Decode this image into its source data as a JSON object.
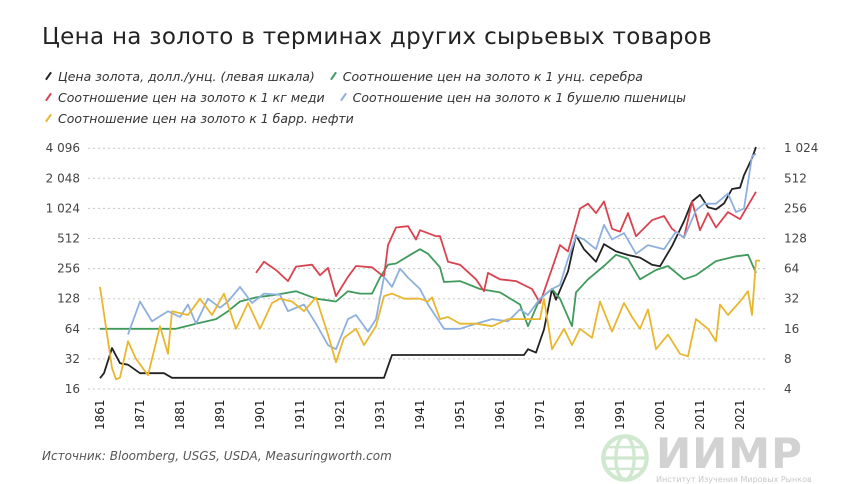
{
  "title": "Цена на золото в терминах других сырьевых товаров",
  "source": "Источник: Bloomberg, USGS, USDA, Measuringworth.com",
  "logo": {
    "text": "ИИМР",
    "subtitle": "Институт Изучения Мировых Рынков"
  },
  "chart_data": {
    "type": "line",
    "y_scale": "log2",
    "grid": true,
    "legend_placement": "top",
    "xlim": [
      1861,
      2025
    ],
    "x_ticks": [
      "1861",
      "1871",
      "1881",
      "1891",
      "1901",
      "1911",
      "1921",
      "1931",
      "1941",
      "1951",
      "1961",
      "1971",
      "1981",
      "1991",
      "2001",
      "2011",
      "2021"
    ],
    "y_left_ticks": [
      "4 096",
      "2 048",
      "1 024",
      "512",
      "256",
      "128",
      "64",
      "32",
      "16"
    ],
    "y_left_values": [
      4096,
      2048,
      1024,
      512,
      256,
      128,
      64,
      32,
      16
    ],
    "y_right_ticks": [
      "1 024",
      "512",
      "256",
      "128",
      "64",
      "32",
      "16",
      "8",
      "4"
    ],
    "y_right_values": [
      1024,
      512,
      256,
      128,
      64,
      32,
      16,
      8,
      4
    ],
    "series": [
      {
        "name": "Цена золота, долл./унц. (левая шкала)",
        "axis": "left",
        "color": "#222222",
        "points": [
          [
            1861,
            20.5
          ],
          [
            1862,
            23
          ],
          [
            1864,
            41
          ],
          [
            1866,
            29
          ],
          [
            1868,
            28
          ],
          [
            1871,
            23
          ],
          [
            1874,
            23
          ],
          [
            1877,
            23
          ],
          [
            1879,
            20.7
          ],
          [
            1932,
            20.7
          ],
          [
            1933,
            27
          ],
          [
            1934,
            35
          ],
          [
            1967,
            35
          ],
          [
            1968,
            40
          ],
          [
            1970,
            37
          ],
          [
            1972,
            63
          ],
          [
            1974,
            160
          ],
          [
            1975,
            125
          ],
          [
            1978,
            240
          ],
          [
            1980,
            550
          ],
          [
            1982,
            400
          ],
          [
            1985,
            300
          ],
          [
            1987,
            450
          ],
          [
            1990,
            380
          ],
          [
            1993,
            350
          ],
          [
            1996,
            330
          ],
          [
            1999,
            280
          ],
          [
            2001,
            270
          ],
          [
            2004,
            430
          ],
          [
            2007,
            760
          ],
          [
            2009,
            1200
          ],
          [
            2011,
            1400
          ],
          [
            2013,
            1050
          ],
          [
            2015,
            1000
          ],
          [
            2017,
            1150
          ],
          [
            2019,
            1600
          ],
          [
            2021,
            1650
          ],
          [
            2022,
            2200
          ],
          [
            2024,
            3250
          ],
          [
            2025,
            4200
          ]
        ]
      },
      {
        "name": "Соотношение цен на золото к 1 унц. серебра",
        "axis": "right",
        "color": "#3f9a5c",
        "points": [
          [
            1861,
            16
          ],
          [
            1873,
            16
          ],
          [
            1880,
            16
          ],
          [
            1885,
            18
          ],
          [
            1890,
            20
          ],
          [
            1893,
            24
          ],
          [
            1896,
            30
          ],
          [
            1900,
            33
          ],
          [
            1905,
            35
          ],
          [
            1910,
            38
          ],
          [
            1915,
            32
          ],
          [
            1920,
            30
          ],
          [
            1923,
            38
          ],
          [
            1926,
            36
          ],
          [
            1929,
            36
          ],
          [
            1931,
            52
          ],
          [
            1933,
            70
          ],
          [
            1935,
            72
          ],
          [
            1939,
            90
          ],
          [
            1941,
            100
          ],
          [
            1943,
            90
          ],
          [
            1946,
            66
          ],
          [
            1947,
            47
          ],
          [
            1951,
            48
          ],
          [
            1956,
            40
          ],
          [
            1961,
            37
          ],
          [
            1966,
            28
          ],
          [
            1968,
            17
          ],
          [
            1971,
            32
          ],
          [
            1974,
            40
          ],
          [
            1976,
            32
          ],
          [
            1979,
            17
          ],
          [
            1980,
            37
          ],
          [
            1983,
            50
          ],
          [
            1987,
            68
          ],
          [
            1990,
            88
          ],
          [
            1993,
            80
          ],
          [
            1996,
            50
          ],
          [
            2000,
            62
          ],
          [
            2003,
            68
          ],
          [
            2007,
            50
          ],
          [
            2010,
            55
          ],
          [
            2015,
            76
          ],
          [
            2020,
            85
          ],
          [
            2023,
            88
          ],
          [
            2025,
            58
          ]
        ]
      },
      {
        "name": "Соотношение цен на золото к 1 кг меди",
        "axis": "right",
        "color": "#d9434f",
        "points": [
          [
            1900,
            58
          ],
          [
            1902,
            75
          ],
          [
            1905,
            62
          ],
          [
            1908,
            48
          ],
          [
            1910,
            67
          ],
          [
            1914,
            70
          ],
          [
            1916,
            55
          ],
          [
            1918,
            65
          ],
          [
            1920,
            34
          ],
          [
            1923,
            53
          ],
          [
            1925,
            68
          ],
          [
            1929,
            66
          ],
          [
            1932,
            53
          ],
          [
            1933,
            110
          ],
          [
            1935,
            165
          ],
          [
            1938,
            170
          ],
          [
            1940,
            125
          ],
          [
            1941,
            155
          ],
          [
            1945,
            135
          ],
          [
            1946,
            135
          ],
          [
            1948,
            75
          ],
          [
            1951,
            70
          ],
          [
            1955,
            50
          ],
          [
            1957,
            38
          ],
          [
            1958,
            58
          ],
          [
            1961,
            50
          ],
          [
            1965,
            48
          ],
          [
            1969,
            40
          ],
          [
            1971,
            29
          ],
          [
            1974,
            64
          ],
          [
            1976,
            110
          ],
          [
            1978,
            95
          ],
          [
            1981,
            255
          ],
          [
            1983,
            285
          ],
          [
            1985,
            230
          ],
          [
            1987,
            300
          ],
          [
            1989,
            160
          ],
          [
            1991,
            150
          ],
          [
            1993,
            230
          ],
          [
            1995,
            135
          ],
          [
            1999,
            195
          ],
          [
            2002,
            215
          ],
          [
            2004,
            160
          ],
          [
            2007,
            130
          ],
          [
            2009,
            300
          ],
          [
            2011,
            155
          ],
          [
            2013,
            230
          ],
          [
            2015,
            165
          ],
          [
            2018,
            235
          ],
          [
            2021,
            200
          ],
          [
            2025,
            375
          ]
        ]
      },
      {
        "name": "Соотношение цен на золото к 1 бушелю пшеницы",
        "axis": "right",
        "color": "#8eb0df",
        "points": [
          [
            1868,
            14
          ],
          [
            1871,
            30
          ],
          [
            1874,
            19
          ],
          [
            1878,
            24
          ],
          [
            1881,
            21
          ],
          [
            1883,
            28
          ],
          [
            1885,
            18
          ],
          [
            1888,
            32
          ],
          [
            1891,
            26
          ],
          [
            1893,
            30
          ],
          [
            1896,
            42
          ],
          [
            1899,
            29
          ],
          [
            1902,
            36
          ],
          [
            1906,
            35
          ],
          [
            1908,
            24
          ],
          [
            1912,
            28
          ],
          [
            1915,
            18
          ],
          [
            1918,
            11
          ],
          [
            1920,
            10
          ],
          [
            1923,
            20
          ],
          [
            1925,
            22
          ],
          [
            1928,
            15
          ],
          [
            1930,
            20
          ],
          [
            1932,
            53
          ],
          [
            1934,
            42
          ],
          [
            1936,
            64
          ],
          [
            1938,
            52
          ],
          [
            1941,
            40
          ],
          [
            1943,
            28
          ],
          [
            1947,
            16
          ],
          [
            1951,
            16
          ],
          [
            1955,
            18
          ],
          [
            1959,
            20
          ],
          [
            1963,
            19
          ],
          [
            1966,
            25
          ],
          [
            1968,
            22
          ],
          [
            1971,
            32
          ],
          [
            1974,
            40
          ],
          [
            1976,
            44
          ],
          [
            1978,
            80
          ],
          [
            1980,
            135
          ],
          [
            1982,
            125
          ],
          [
            1985,
            100
          ],
          [
            1987,
            175
          ],
          [
            1989,
            125
          ],
          [
            1992,
            145
          ],
          [
            1995,
            90
          ],
          [
            1998,
            110
          ],
          [
            2002,
            100
          ],
          [
            2005,
            150
          ],
          [
            2007,
            130
          ],
          [
            2010,
            245
          ],
          [
            2012,
            285
          ],
          [
            2015,
            285
          ],
          [
            2018,
            360
          ],
          [
            2020,
            235
          ],
          [
            2022,
            255
          ],
          [
            2024,
            850
          ],
          [
            2025,
            900
          ]
        ]
      },
      {
        "name": "Соотношение цен на золото к 1 барр. нефти",
        "axis": "right",
        "color": "#e8b62f",
        "points": [
          [
            1861,
            42
          ],
          [
            1864,
            6.5
          ],
          [
            1865,
            5
          ],
          [
            1866,
            5.2
          ],
          [
            1868,
            12
          ],
          [
            1870,
            8
          ],
          [
            1873,
            5.5
          ],
          [
            1876,
            17
          ],
          [
            1878,
            9
          ],
          [
            1879,
            24
          ],
          [
            1883,
            22
          ],
          [
            1886,
            32
          ],
          [
            1889,
            22
          ],
          [
            1892,
            36
          ],
          [
            1895,
            16
          ],
          [
            1898,
            29
          ],
          [
            1901,
            16
          ],
          [
            1904,
            29
          ],
          [
            1906,
            32
          ],
          [
            1909,
            30
          ],
          [
            1912,
            24
          ],
          [
            1915,
            33
          ],
          [
            1918,
            14
          ],
          [
            1920,
            7.4
          ],
          [
            1922,
            13
          ],
          [
            1925,
            16
          ],
          [
            1927,
            11
          ],
          [
            1930,
            17
          ],
          [
            1932,
            34
          ],
          [
            1934,
            36
          ],
          [
            1937,
            32
          ],
          [
            1941,
            32
          ],
          [
            1943,
            30
          ],
          [
            1944,
            33
          ],
          [
            1946,
            20
          ],
          [
            1948,
            21
          ],
          [
            1951,
            18
          ],
          [
            1955,
            18
          ],
          [
            1959,
            17
          ],
          [
            1963,
            20
          ],
          [
            1967,
            20
          ],
          [
            1971,
            20
          ],
          [
            1972,
            32
          ],
          [
            1974,
            10
          ],
          [
            1977,
            16
          ],
          [
            1979,
            11
          ],
          [
            1981,
            16
          ],
          [
            1984,
            13
          ],
          [
            1986,
            30
          ],
          [
            1989,
            15
          ],
          [
            1992,
            29
          ],
          [
            1994,
            21
          ],
          [
            1996,
            16
          ],
          [
            1998,
            25
          ],
          [
            2000,
            10
          ],
          [
            2003,
            14
          ],
          [
            2006,
            9
          ],
          [
            2008,
            8.5
          ],
          [
            2010,
            20
          ],
          [
            2013,
            16
          ],
          [
            2015,
            12
          ],
          [
            2016,
            28
          ],
          [
            2018,
            22
          ],
          [
            2021,
            30
          ],
          [
            2023,
            38
          ],
          [
            2024,
            22
          ],
          [
            2025,
            77
          ],
          [
            2026,
            77
          ]
        ]
      }
    ]
  }
}
